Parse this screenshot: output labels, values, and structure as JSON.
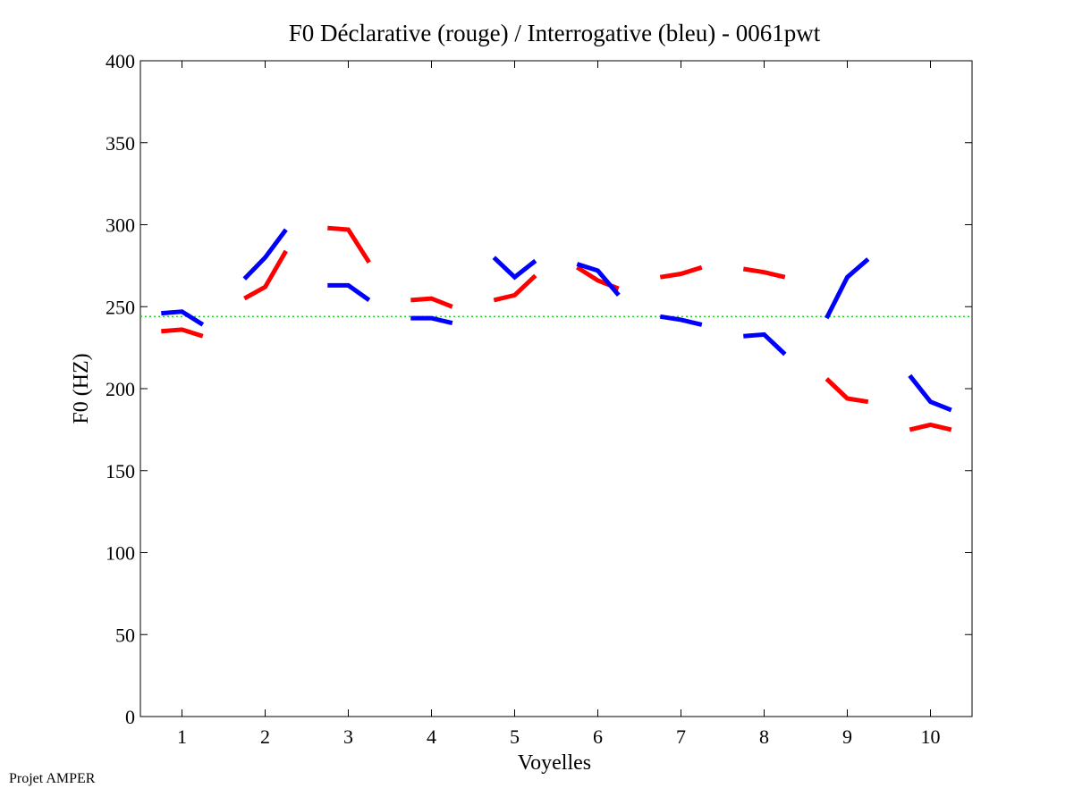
{
  "chart_data": {
    "type": "line",
    "title": "F0 Déclarative (rouge) / Interrogative (bleu) - 0061pwt",
    "xlabel": "Voyelles",
    "ylabel": "F0 (HZ)",
    "xlim": [
      0.5,
      10.5
    ],
    "ylim": [
      0,
      400
    ],
    "xticks": [
      1,
      2,
      3,
      4,
      5,
      6,
      7,
      8,
      9,
      10
    ],
    "xtick_labels": [
      "1",
      "2",
      "3",
      "4",
      "5",
      "6",
      "7",
      "8",
      "9",
      "10"
    ],
    "yticks": [
      0,
      50,
      100,
      150,
      200,
      250,
      300,
      350,
      400
    ],
    "ytick_labels": [
      "0",
      "50",
      "100",
      "150",
      "200",
      "250",
      "300",
      "350",
      "400"
    ],
    "grid": false,
    "reference_line": {
      "y": 244,
      "color": "#00cc00",
      "style": "dotted"
    },
    "series": [
      {
        "name": "Déclarative (rouge)",
        "color": "#ff0000",
        "segments": [
          {
            "vowel": 1,
            "x": [
              0.75,
              1.0,
              1.25
            ],
            "y": [
              235,
              236,
              232
            ]
          },
          {
            "vowel": 2,
            "x": [
              1.75,
              2.0,
              2.25
            ],
            "y": [
              255,
              262,
              284
            ]
          },
          {
            "vowel": 3,
            "x": [
              2.75,
              3.0,
              3.25
            ],
            "y": [
              298,
              297,
              277
            ]
          },
          {
            "vowel": 4,
            "x": [
              3.75,
              4.0,
              4.25
            ],
            "y": [
              254,
              255,
              250
            ]
          },
          {
            "vowel": 5,
            "x": [
              4.75,
              5.0,
              5.25
            ],
            "y": [
              254,
              257,
              269
            ]
          },
          {
            "vowel": 6,
            "x": [
              5.75,
              6.0,
              6.25
            ],
            "y": [
              274,
              266,
              261
            ]
          },
          {
            "vowel": 7,
            "x": [
              6.75,
              7.0,
              7.25
            ],
            "y": [
              268,
              270,
              274
            ]
          },
          {
            "vowel": 8,
            "x": [
              7.75,
              8.0,
              8.25
            ],
            "y": [
              273,
              271,
              268
            ]
          },
          {
            "vowel": 9,
            "x": [
              8.75,
              9.0,
              9.25
            ],
            "y": [
              206,
              194,
              192
            ]
          },
          {
            "vowel": 10,
            "x": [
              9.75,
              10.0,
              10.25
            ],
            "y": [
              175,
              178,
              175
            ]
          }
        ]
      },
      {
        "name": "Interrogative (bleu)",
        "color": "#0000ff",
        "segments": [
          {
            "vowel": 1,
            "x": [
              0.75,
              1.0,
              1.25
            ],
            "y": [
              246,
              247,
              239
            ]
          },
          {
            "vowel": 2,
            "x": [
              1.75,
              2.0,
              2.25
            ],
            "y": [
              267,
              280,
              297
            ]
          },
          {
            "vowel": 3,
            "x": [
              2.75,
              3.0,
              3.25
            ],
            "y": [
              263,
              263,
              254
            ]
          },
          {
            "vowel": 4,
            "x": [
              3.75,
              4.0,
              4.25
            ],
            "y": [
              243,
              243,
              240
            ]
          },
          {
            "vowel": 5,
            "x": [
              4.75,
              5.0,
              5.25
            ],
            "y": [
              280,
              268,
              278
            ]
          },
          {
            "vowel": 6,
            "x": [
              5.75,
              6.0,
              6.25
            ],
            "y": [
              276,
              272,
              257
            ]
          },
          {
            "vowel": 7,
            "x": [
              6.75,
              7.0,
              7.25
            ],
            "y": [
              244,
              242,
              239
            ]
          },
          {
            "vowel": 8,
            "x": [
              7.75,
              8.0,
              8.25
            ],
            "y": [
              232,
              233,
              221
            ]
          },
          {
            "vowel": 9,
            "x": [
              8.75,
              9.0,
              9.25
            ],
            "y": [
              243,
              268,
              279
            ]
          },
          {
            "vowel": 10,
            "x": [
              9.75,
              10.0,
              10.25
            ],
            "y": [
              208,
              192,
              187
            ]
          }
        ]
      }
    ]
  },
  "footer": {
    "text": "Projet AMPER"
  }
}
